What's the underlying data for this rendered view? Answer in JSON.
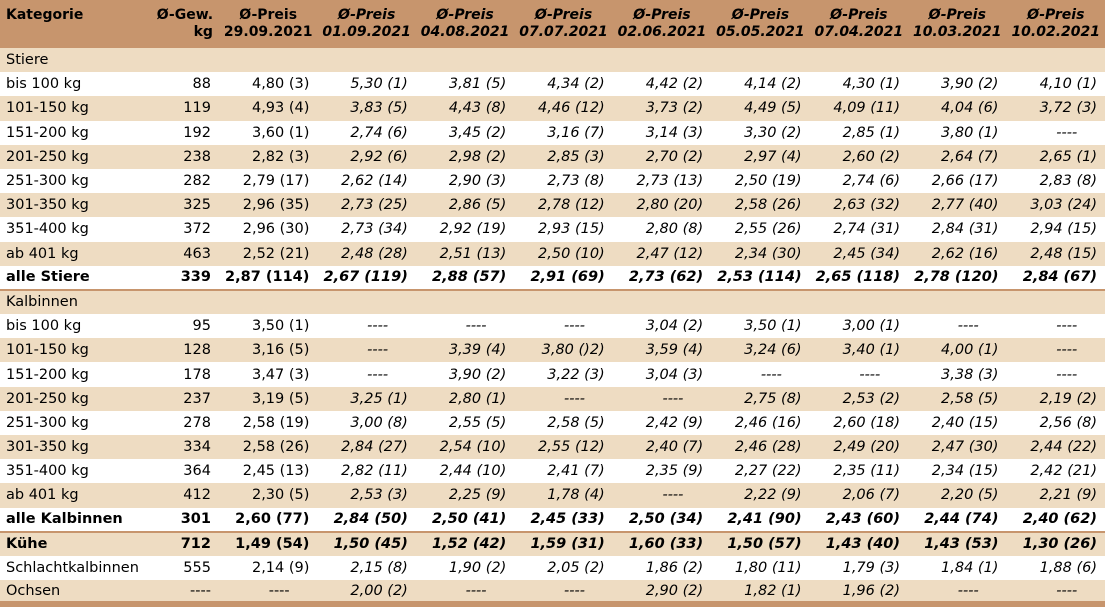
{
  "header": {
    "kategorie": "Kategorie",
    "gew_line1": "Ø-Gew.",
    "gew_line2": "kg",
    "price_label": "Ø-Preis",
    "dates": [
      "29.09.2021",
      "01.09.2021",
      "04.08.2021",
      "07.07.2021",
      "02.06.2021",
      "05.05.2021",
      "07.04.2021",
      "10.03.2021",
      "10.02.2021"
    ]
  },
  "sections": [
    {
      "title": "Stiere",
      "rows": [
        {
          "kat": "bis 100 kg",
          "gew": "88",
          "prices": [
            "4,80 (3)",
            "5,30 (1)",
            "3,81 (5)",
            "4,34 (2)",
            "4,42 (2)",
            "4,14 (2)",
            "4,30 (1)",
            "3,90 (2)",
            "4,10 (1)"
          ]
        },
        {
          "kat": "101-150 kg",
          "gew": "119",
          "prices": [
            "4,93 (4)",
            "3,83 (5)",
            "4,43 (8)",
            "4,46 (12)",
            "3,73 (2)",
            "4,49 (5)",
            "4,09 (11)",
            "4,04 (6)",
            "3,72 (3)"
          ]
        },
        {
          "kat": "151-200 kg",
          "gew": "192",
          "prices": [
            "3,60 (1)",
            "2,74 (6)",
            "3,45 (2)",
            "3,16 (7)",
            "3,14 (3)",
            "3,30 (2)",
            "2,85 (1)",
            "3,80 (1)",
            "----"
          ]
        },
        {
          "kat": "201-250 kg",
          "gew": "238",
          "prices": [
            "2,82 (3)",
            "2,92 (6)",
            "2,98 (2)",
            "2,85 (3)",
            "2,70 (2)",
            "2,97 (4)",
            "2,60 (2)",
            "2,64 (7)",
            "2,65 (1)"
          ]
        },
        {
          "kat": "251-300 kg",
          "gew": "282",
          "prices": [
            "2,79 (17)",
            "2,62 (14)",
            "2,90 (3)",
            "2,73 (8)",
            "2,73 (13)",
            "2,50 (19)",
            "2,74 (6)",
            "2,66 (17)",
            "2,83 (8)"
          ]
        },
        {
          "kat": "301-350 kg",
          "gew": "325",
          "prices": [
            "2,96 (35)",
            "2,73 (25)",
            "2,86 (5)",
            "2,78 (12)",
            "2,80 (20)",
            "2,58 (26)",
            "2,63 (32)",
            "2,77 (40)",
            "3,03 (24)"
          ]
        },
        {
          "kat": "351-400 kg",
          "gew": "372",
          "prices": [
            "2,96 (30)",
            "2,73 (34)",
            "2,92 (19)",
            "2,93 (15)",
            "2,80 (8)",
            "2,55 (26)",
            "2,74 (31)",
            "2,84 (31)",
            "2,94 (15)"
          ]
        },
        {
          "kat": "ab 401 kg",
          "gew": "463",
          "prices": [
            "2,52 (21)",
            "2,48 (28)",
            "2,51 (13)",
            "2,50 (10)",
            "2,47 (12)",
            "2,34 (30)",
            "2,45 (34)",
            "2,62 (16)",
            "2,48 (15)"
          ]
        }
      ],
      "total": {
        "kat": "alle Stiere",
        "gew": "339",
        "prices": [
          "2,87 (114)",
          "2,67 (119)",
          "2,88 (57)",
          "2,91 (69)",
          "2,73 (62)",
          "2,53 (114)",
          "2,65 (118)",
          "2,78 (120)",
          "2,84 (67)"
        ]
      }
    },
    {
      "title": "Kalbinnen",
      "rows": [
        {
          "kat": "bis 100 kg",
          "gew": "95",
          "prices": [
            "3,50 (1)",
            "----",
            "----",
            "----",
            "3,04 (2)",
            "3,50 (1)",
            "3,00 (1)",
            "----",
            "----"
          ]
        },
        {
          "kat": "101-150 kg",
          "gew": "128",
          "prices": [
            "3,16 (5)",
            "----",
            "3,39 (4)",
            "3,80 ()2)",
            "3,59 (4)",
            "3,24 (6)",
            "3,40 (1)",
            "4,00 (1)",
            "----"
          ]
        },
        {
          "kat": "151-200 kg",
          "gew": "178",
          "prices": [
            "3,47 (3)",
            "----",
            "3,90 (2)",
            "3,22 (3)",
            "3,04 (3)",
            "----",
            "----",
            "3,38 (3)",
            "----"
          ]
        },
        {
          "kat": "201-250 kg",
          "gew": "237",
          "prices": [
            "3,19 (5)",
            "3,25 (1)",
            "2,80 (1)",
            "----",
            "----",
            "2,75 (8)",
            "2,53 (2)",
            "2,58 (5)",
            "2,19 (2)"
          ]
        },
        {
          "kat": "251-300 kg",
          "gew": "278",
          "prices": [
            "2,58 (19)",
            "3,00 (8)",
            "2,55 (5)",
            "2,58 (5)",
            "2,42 (9)",
            "2,46 (16)",
            "2,60 (18)",
            "2,40 (15)",
            "2,56 (8)"
          ]
        },
        {
          "kat": "301-350 kg",
          "gew": "334",
          "prices": [
            "2,58 (26)",
            "2,84 (27)",
            "2,54 (10)",
            "2,55 (12)",
            "2,40 (7)",
            "2,46 (28)",
            "2,49 (20)",
            "2,47 (30)",
            "2,44 (22)"
          ]
        },
        {
          "kat": "351-400 kg",
          "gew": "364",
          "prices": [
            "2,45 (13)",
            "2,82 (11)",
            "2,44 (10)",
            "2,41 (7)",
            "2,35 (9)",
            "2,27 (22)",
            "2,35 (11)",
            "2,34 (15)",
            "2,42 (21)"
          ]
        },
        {
          "kat": "ab 401 kg",
          "gew": "412",
          "prices": [
            "2,30 (5)",
            "2,53 (3)",
            "2,25 (9)",
            "1,78 (4)",
            "----",
            "2,22 (9)",
            "2,06 (7)",
            "2,20 (5)",
            "2,21 (9)"
          ]
        }
      ],
      "total": {
        "kat": "alle Kalbinnen",
        "gew": "301",
        "prices": [
          "2,60 (77)",
          "2,84 (50)",
          "2,50 (41)",
          "2,45 (33)",
          "2,50 (34)",
          "2,41 (90)",
          "2,43 (60)",
          "2,44 (74)",
          "2,40 (62)"
        ]
      }
    }
  ],
  "extra_rows": [
    {
      "kat": "Kühe",
      "gew": "712",
      "bold": true,
      "prices": [
        "1,49 (54)",
        "1,50 (45)",
        "1,52 (42)",
        "1,59 (31)",
        "1,60 (33)",
        "1,50 (57)",
        "1,43 (40)",
        "1,43 (53)",
        "1,30 (26)"
      ]
    },
    {
      "kat": "Schlachtkalbinnen",
      "gew": "555",
      "bold": false,
      "prices": [
        "2,14 (9)",
        "2,15 (8)",
        "1,90 (2)",
        "2,05 (2)",
        "1,86 (2)",
        "1,80 (11)",
        "1,79 (3)",
        "1,84 (1)",
        "1,88 (6)"
      ]
    },
    {
      "kat": "Ochsen",
      "gew": "----",
      "bold": false,
      "prices": [
        "----",
        "2,00 (2)",
        "----",
        "----",
        "2,90 (2)",
        "1,82 (1)",
        "1,96 (2)",
        "----",
        "----"
      ]
    }
  ],
  "colors": {
    "header": "#c7956d",
    "stripe": "#eedcc2",
    "white": "#ffffff"
  }
}
